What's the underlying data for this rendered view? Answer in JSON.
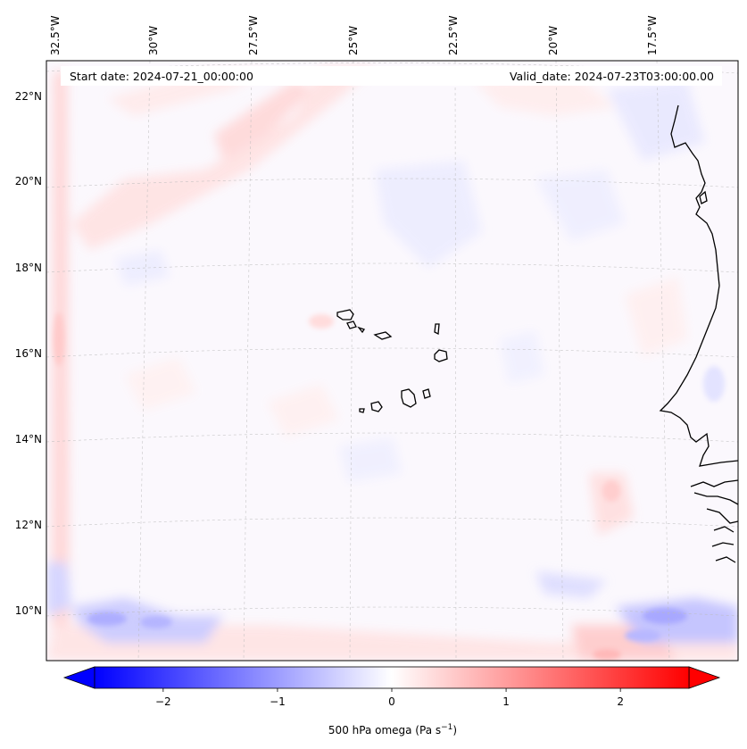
{
  "header": {
    "start_label": "Start date: 2024-07-21_00:00:00",
    "valid_label": "Valid_date: 2024-07-23T03:00:00.00"
  },
  "map": {
    "lon_labels": [
      "32.5°W",
      "30°W",
      "27.5°W",
      "25°W",
      "22.5°W",
      "20°W",
      "17.5°W"
    ],
    "lat_labels": [
      "22°N",
      "20°N",
      "18°N",
      "16°N",
      "14°N",
      "12°N",
      "10°N"
    ],
    "gridlines": "dashed"
  },
  "colorbar": {
    "label_main": "500 hPa omega (Pa s",
    "label_exp": "−1",
    "label_close": ")",
    "ticks": [
      "−2",
      "−1",
      "0",
      "1",
      "2"
    ],
    "tick_values": [
      -2,
      -1,
      0,
      1,
      2
    ],
    "range": [
      -2.6,
      2.6
    ],
    "colormap": "bwr",
    "extend": "both",
    "colors": {
      "min": "#0000ff",
      "mid": "#ffffff",
      "max": "#ff0000"
    }
  }
}
